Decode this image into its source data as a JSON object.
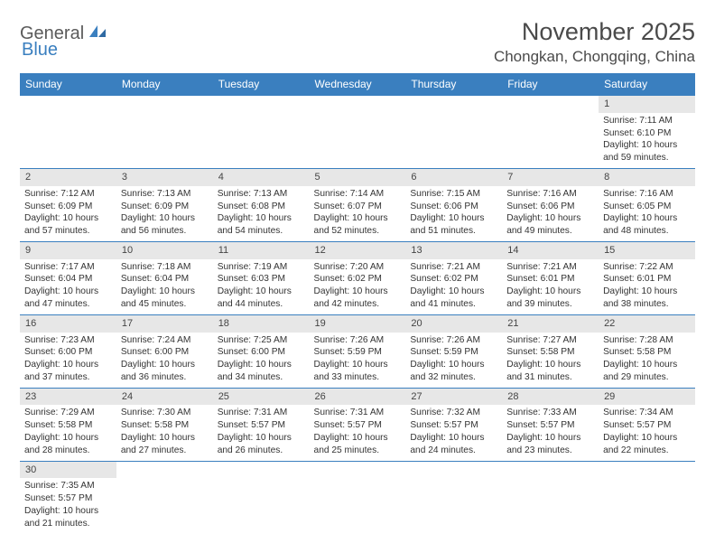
{
  "logo": {
    "part1": "General",
    "part2": "Blue"
  },
  "title": "November 2025",
  "location": "Chongkan, Chongqing, China",
  "colors": {
    "header_bg": "#3a7fbf",
    "header_text": "#ffffff",
    "daynum_bg": "#e7e7e7",
    "border": "#3a7fbf",
    "text": "#333333",
    "title_text": "#4a4a4a"
  },
  "weekdays": [
    "Sunday",
    "Monday",
    "Tuesday",
    "Wednesday",
    "Thursday",
    "Friday",
    "Saturday"
  ],
  "weeks": [
    [
      null,
      null,
      null,
      null,
      null,
      null,
      {
        "n": "1",
        "sr": "Sunrise: 7:11 AM",
        "ss": "Sunset: 6:10 PM",
        "dl": "Daylight: 10 hours and 59 minutes."
      }
    ],
    [
      {
        "n": "2",
        "sr": "Sunrise: 7:12 AM",
        "ss": "Sunset: 6:09 PM",
        "dl": "Daylight: 10 hours and 57 minutes."
      },
      {
        "n": "3",
        "sr": "Sunrise: 7:13 AM",
        "ss": "Sunset: 6:09 PM",
        "dl": "Daylight: 10 hours and 56 minutes."
      },
      {
        "n": "4",
        "sr": "Sunrise: 7:13 AM",
        "ss": "Sunset: 6:08 PM",
        "dl": "Daylight: 10 hours and 54 minutes."
      },
      {
        "n": "5",
        "sr": "Sunrise: 7:14 AM",
        "ss": "Sunset: 6:07 PM",
        "dl": "Daylight: 10 hours and 52 minutes."
      },
      {
        "n": "6",
        "sr": "Sunrise: 7:15 AM",
        "ss": "Sunset: 6:06 PM",
        "dl": "Daylight: 10 hours and 51 minutes."
      },
      {
        "n": "7",
        "sr": "Sunrise: 7:16 AM",
        "ss": "Sunset: 6:06 PM",
        "dl": "Daylight: 10 hours and 49 minutes."
      },
      {
        "n": "8",
        "sr": "Sunrise: 7:16 AM",
        "ss": "Sunset: 6:05 PM",
        "dl": "Daylight: 10 hours and 48 minutes."
      }
    ],
    [
      {
        "n": "9",
        "sr": "Sunrise: 7:17 AM",
        "ss": "Sunset: 6:04 PM",
        "dl": "Daylight: 10 hours and 47 minutes."
      },
      {
        "n": "10",
        "sr": "Sunrise: 7:18 AM",
        "ss": "Sunset: 6:04 PM",
        "dl": "Daylight: 10 hours and 45 minutes."
      },
      {
        "n": "11",
        "sr": "Sunrise: 7:19 AM",
        "ss": "Sunset: 6:03 PM",
        "dl": "Daylight: 10 hours and 44 minutes."
      },
      {
        "n": "12",
        "sr": "Sunrise: 7:20 AM",
        "ss": "Sunset: 6:02 PM",
        "dl": "Daylight: 10 hours and 42 minutes."
      },
      {
        "n": "13",
        "sr": "Sunrise: 7:21 AM",
        "ss": "Sunset: 6:02 PM",
        "dl": "Daylight: 10 hours and 41 minutes."
      },
      {
        "n": "14",
        "sr": "Sunrise: 7:21 AM",
        "ss": "Sunset: 6:01 PM",
        "dl": "Daylight: 10 hours and 39 minutes."
      },
      {
        "n": "15",
        "sr": "Sunrise: 7:22 AM",
        "ss": "Sunset: 6:01 PM",
        "dl": "Daylight: 10 hours and 38 minutes."
      }
    ],
    [
      {
        "n": "16",
        "sr": "Sunrise: 7:23 AM",
        "ss": "Sunset: 6:00 PM",
        "dl": "Daylight: 10 hours and 37 minutes."
      },
      {
        "n": "17",
        "sr": "Sunrise: 7:24 AM",
        "ss": "Sunset: 6:00 PM",
        "dl": "Daylight: 10 hours and 36 minutes."
      },
      {
        "n": "18",
        "sr": "Sunrise: 7:25 AM",
        "ss": "Sunset: 6:00 PM",
        "dl": "Daylight: 10 hours and 34 minutes."
      },
      {
        "n": "19",
        "sr": "Sunrise: 7:26 AM",
        "ss": "Sunset: 5:59 PM",
        "dl": "Daylight: 10 hours and 33 minutes."
      },
      {
        "n": "20",
        "sr": "Sunrise: 7:26 AM",
        "ss": "Sunset: 5:59 PM",
        "dl": "Daylight: 10 hours and 32 minutes."
      },
      {
        "n": "21",
        "sr": "Sunrise: 7:27 AM",
        "ss": "Sunset: 5:58 PM",
        "dl": "Daylight: 10 hours and 31 minutes."
      },
      {
        "n": "22",
        "sr": "Sunrise: 7:28 AM",
        "ss": "Sunset: 5:58 PM",
        "dl": "Daylight: 10 hours and 29 minutes."
      }
    ],
    [
      {
        "n": "23",
        "sr": "Sunrise: 7:29 AM",
        "ss": "Sunset: 5:58 PM",
        "dl": "Daylight: 10 hours and 28 minutes."
      },
      {
        "n": "24",
        "sr": "Sunrise: 7:30 AM",
        "ss": "Sunset: 5:58 PM",
        "dl": "Daylight: 10 hours and 27 minutes."
      },
      {
        "n": "25",
        "sr": "Sunrise: 7:31 AM",
        "ss": "Sunset: 5:57 PM",
        "dl": "Daylight: 10 hours and 26 minutes."
      },
      {
        "n": "26",
        "sr": "Sunrise: 7:31 AM",
        "ss": "Sunset: 5:57 PM",
        "dl": "Daylight: 10 hours and 25 minutes."
      },
      {
        "n": "27",
        "sr": "Sunrise: 7:32 AM",
        "ss": "Sunset: 5:57 PM",
        "dl": "Daylight: 10 hours and 24 minutes."
      },
      {
        "n": "28",
        "sr": "Sunrise: 7:33 AM",
        "ss": "Sunset: 5:57 PM",
        "dl": "Daylight: 10 hours and 23 minutes."
      },
      {
        "n": "29",
        "sr": "Sunrise: 7:34 AM",
        "ss": "Sunset: 5:57 PM",
        "dl": "Daylight: 10 hours and 22 minutes."
      }
    ],
    [
      {
        "n": "30",
        "sr": "Sunrise: 7:35 AM",
        "ss": "Sunset: 5:57 PM",
        "dl": "Daylight: 10 hours and 21 minutes."
      },
      null,
      null,
      null,
      null,
      null,
      null
    ]
  ]
}
